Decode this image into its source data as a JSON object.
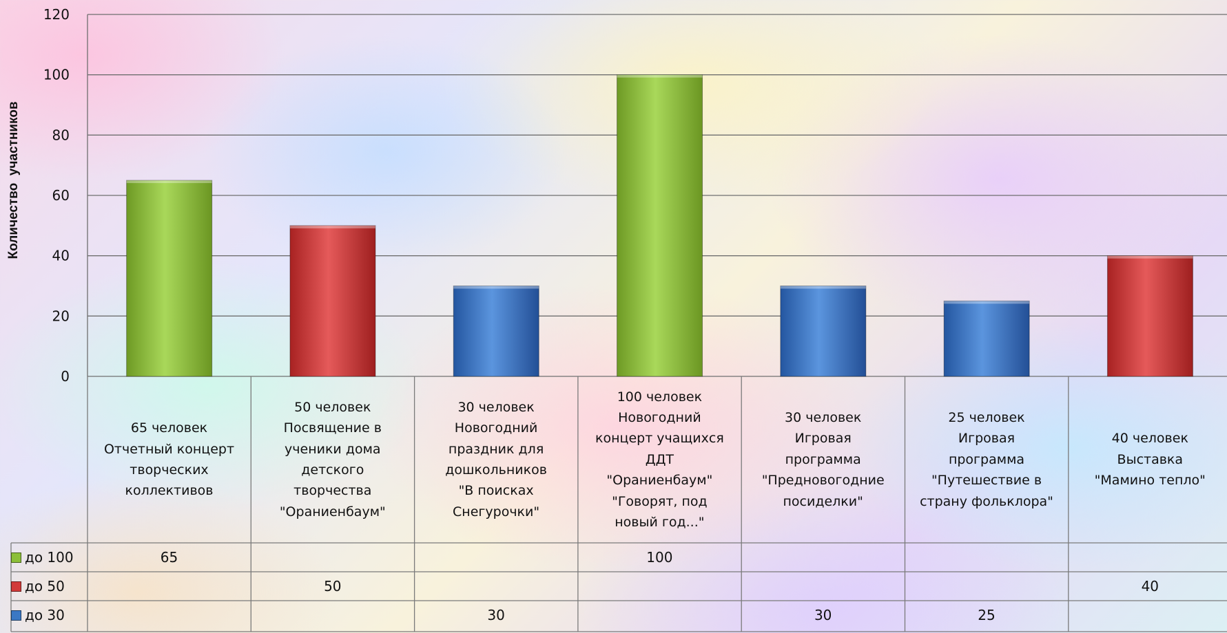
{
  "chart_data": {
    "type": "bar",
    "ylabel": "Количество  участников",
    "ylim": [
      0,
      120
    ],
    "yticks": [
      0,
      20,
      40,
      60,
      80,
      100,
      120
    ],
    "grid": true,
    "legend": "data-table",
    "categories": [
      "65 человек Отчетный концерт творческих коллективов",
      "50 человек Посвящение в ученики дома детского творчества \"Ораниенбаум\"",
      "30 человек Новогодний праздник для дошкольников \"В поисках Снегурочки\"",
      "100 человек Новогодний концерт учащихся ДДТ \"Ораниенбаум\" \"Говорят, под новый год...\"",
      "30 человек Игровая программа \"Предновогодние посиделки\"",
      "25 человек Игровая программа \"Путешествие в страну фольклора\"",
      "40 человек Выставка \"Мамино тепло\""
    ],
    "category_lines": [
      [
        "65 человек",
        "Отчетный концерт",
        "творческих",
        "коллективов"
      ],
      [
        "50 человек",
        "Посвящение в",
        "ученики дома",
        "детского",
        "творчества",
        "\"Ораниенбаум\""
      ],
      [
        "30 человек",
        "Новогодний",
        "праздник для",
        "дошкольников",
        "\"В поисках",
        "Снегурочки\""
      ],
      [
        "100 человек",
        "Новогодний",
        "концерт учащихся",
        "ДДТ",
        "\"Ораниенбаум\"",
        "\"Говорят, под",
        "новый год...\""
      ],
      [
        "30 человек",
        "Игровая",
        "программа",
        "\"Предновогодние",
        "посиделки\""
      ],
      [
        "25 человек",
        "Игровая",
        "программа",
        "\"Путешествие в",
        "страну фольклора\""
      ],
      [
        "40 человек",
        "Выставка",
        "\"Мамино тепло\""
      ]
    ],
    "series": [
      {
        "name": "до 100",
        "color": "#8cbf3a",
        "values": [
          65,
          null,
          null,
          100,
          null,
          null,
          null
        ]
      },
      {
        "name": "до 50",
        "color": "#d23a3a",
        "values": [
          null,
          50,
          null,
          null,
          null,
          null,
          40
        ]
      },
      {
        "name": "до 30",
        "color": "#3b78c4",
        "values": [
          null,
          null,
          30,
          null,
          30,
          25,
          null
        ]
      }
    ]
  }
}
